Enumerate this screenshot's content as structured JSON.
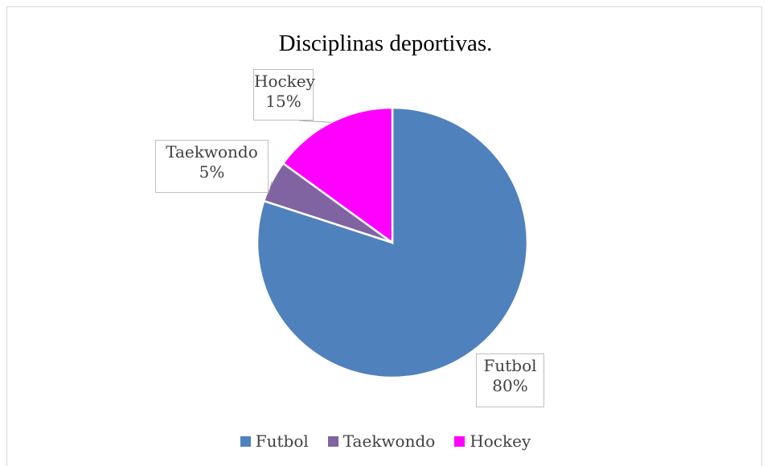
{
  "chart_data": {
    "type": "pie",
    "title": "Disciplinas deportivas.",
    "categories": [
      "Futbol",
      "Taekwondo",
      "Hockey"
    ],
    "values": [
      80,
      5,
      15
    ],
    "data_labels": [
      {
        "name": "Futbol",
        "value": "80%"
      },
      {
        "name": "Taekwondo",
        "value": "5%"
      },
      {
        "name": "Hockey",
        "value": "15%"
      }
    ],
    "colors": [
      "#4f81bd",
      "#8064a2",
      "#ff00ff"
    ],
    "legend_position": "bottom",
    "legend": [
      "Futbol",
      "Taekwondo",
      "Hockey"
    ]
  }
}
